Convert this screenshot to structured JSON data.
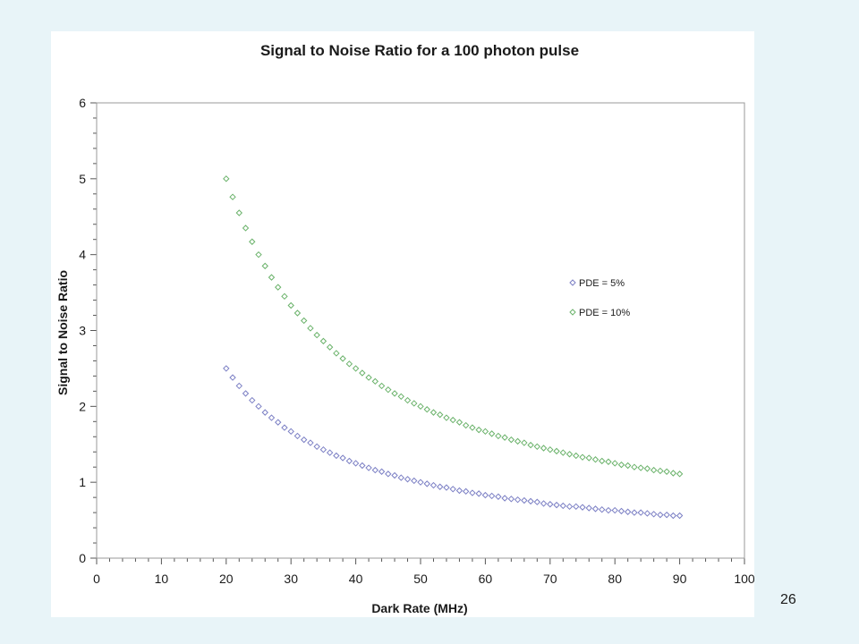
{
  "slide": {
    "number": "26"
  },
  "chart_data": {
    "type": "scatter",
    "title": "Signal to Noise Ratio for a 100 photon pulse",
    "xlabel": "Dark Rate (MHz)",
    "ylabel": "Signal to Noise Ratio",
    "xlim": [
      0,
      100
    ],
    "ylim": [
      0,
      6
    ],
    "xticks": [
      0,
      10,
      20,
      30,
      40,
      50,
      60,
      70,
      80,
      90,
      100
    ],
    "yticks": [
      0,
      1,
      2,
      3,
      4,
      5,
      6
    ],
    "grid": false,
    "legend": "right",
    "series": [
      {
        "name": "PDE = 5%",
        "color": "#7b7fc4",
        "marker": "diamond",
        "x": [
          20,
          21,
          22,
          23,
          24,
          25,
          26,
          27,
          28,
          29,
          30,
          31,
          32,
          33,
          34,
          35,
          36,
          37,
          38,
          39,
          40,
          41,
          42,
          43,
          44,
          45,
          46,
          47,
          48,
          49,
          50,
          51,
          52,
          53,
          54,
          55,
          56,
          57,
          58,
          59,
          60,
          61,
          62,
          63,
          64,
          65,
          66,
          67,
          68,
          69,
          70,
          71,
          72,
          73,
          74,
          75,
          76,
          77,
          78,
          79,
          80,
          81,
          82,
          83,
          84,
          85,
          86,
          87,
          88,
          89,
          90
        ],
        "y": [
          2.5,
          2.38,
          2.27,
          2.17,
          2.08,
          2.0,
          1.92,
          1.85,
          1.79,
          1.72,
          1.67,
          1.61,
          1.56,
          1.52,
          1.47,
          1.43,
          1.39,
          1.35,
          1.32,
          1.28,
          1.25,
          1.22,
          1.19,
          1.16,
          1.14,
          1.11,
          1.09,
          1.06,
          1.04,
          1.02,
          1.0,
          0.98,
          0.96,
          0.94,
          0.93,
          0.91,
          0.89,
          0.88,
          0.86,
          0.85,
          0.83,
          0.82,
          0.81,
          0.79,
          0.78,
          0.77,
          0.76,
          0.75,
          0.74,
          0.72,
          0.71,
          0.7,
          0.69,
          0.68,
          0.68,
          0.67,
          0.66,
          0.65,
          0.64,
          0.63,
          0.63,
          0.62,
          0.61,
          0.6,
          0.6,
          0.59,
          0.58,
          0.57,
          0.57,
          0.56,
          0.56
        ]
      },
      {
        "name": "PDE = 10%",
        "color": "#6ab26a",
        "marker": "diamond",
        "x": [
          20,
          21,
          22,
          23,
          24,
          25,
          26,
          27,
          28,
          29,
          30,
          31,
          32,
          33,
          34,
          35,
          36,
          37,
          38,
          39,
          40,
          41,
          42,
          43,
          44,
          45,
          46,
          47,
          48,
          49,
          50,
          51,
          52,
          53,
          54,
          55,
          56,
          57,
          58,
          59,
          60,
          61,
          62,
          63,
          64,
          65,
          66,
          67,
          68,
          69,
          70,
          71,
          72,
          73,
          74,
          75,
          76,
          77,
          78,
          79,
          80,
          81,
          82,
          83,
          84,
          85,
          86,
          87,
          88,
          89,
          90
        ],
        "y": [
          5.0,
          4.76,
          4.55,
          4.35,
          4.17,
          4.0,
          3.85,
          3.7,
          3.57,
          3.45,
          3.33,
          3.23,
          3.13,
          3.03,
          2.94,
          2.86,
          2.78,
          2.7,
          2.63,
          2.56,
          2.5,
          2.44,
          2.38,
          2.33,
          2.27,
          2.22,
          2.17,
          2.13,
          2.08,
          2.04,
          2.0,
          1.96,
          1.92,
          1.89,
          1.85,
          1.82,
          1.79,
          1.75,
          1.72,
          1.69,
          1.67,
          1.64,
          1.61,
          1.59,
          1.56,
          1.54,
          1.52,
          1.49,
          1.47,
          1.45,
          1.43,
          1.41,
          1.39,
          1.37,
          1.35,
          1.33,
          1.32,
          1.3,
          1.28,
          1.27,
          1.25,
          1.23,
          1.22,
          1.2,
          1.19,
          1.18,
          1.16,
          1.15,
          1.14,
          1.12,
          1.11
        ]
      }
    ]
  }
}
